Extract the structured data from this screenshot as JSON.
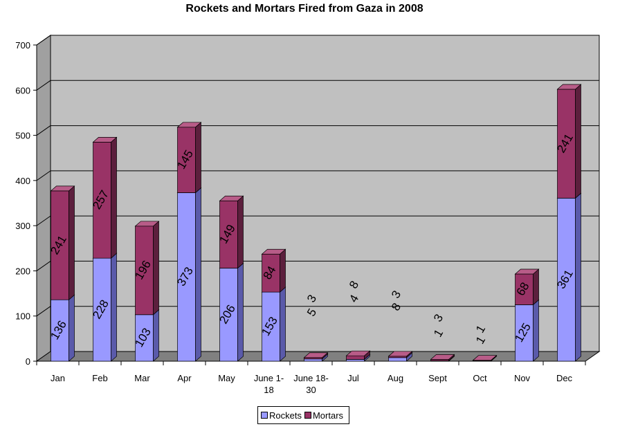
{
  "chart_data": {
    "type": "bar",
    "stacked": true,
    "three_d": true,
    "title": "Rockets and Mortars Fired from Gaza in 2008",
    "categories": [
      "Jan",
      "Feb",
      "Mar",
      "Apr",
      "May",
      "June 1-18",
      "June 18-30",
      "Jul",
      "Aug",
      "Sept",
      "Oct",
      "Nov",
      "Dec"
    ],
    "category_labels": [
      [
        "Jan"
      ],
      [
        "Feb"
      ],
      [
        "Mar"
      ],
      [
        "Apr"
      ],
      [
        "May"
      ],
      [
        "June 1-",
        "18"
      ],
      [
        "June 18-",
        "30"
      ],
      [
        "Jul"
      ],
      [
        "Aug"
      ],
      [
        "Sept"
      ],
      [
        "Oct"
      ],
      [
        "Nov"
      ],
      [
        "Dec"
      ]
    ],
    "series": [
      {
        "name": "Rockets",
        "values": [
          136,
          228,
          103,
          373,
          206,
          153,
          5,
          4,
          8,
          1,
          1,
          125,
          361
        ],
        "color": "#9999ff",
        "side_color": "#5a5aaa",
        "top_color": "#b8b8ff"
      },
      {
        "name": "Mortars",
        "values": [
          241,
          257,
          196,
          145,
          149,
          84,
          3,
          8,
          3,
          3,
          1,
          68,
          241
        ],
        "color": "#993366",
        "side_color": "#5c1f3d",
        "top_color": "#b85c88"
      }
    ],
    "ylim": [
      0,
      700
    ],
    "yticks": [
      0,
      100,
      200,
      300,
      400,
      500,
      600,
      700
    ],
    "grid": true,
    "legend_position": "bottom",
    "data_labels": true,
    "data_label_rotation": -60,
    "wall_color": "#c0c0c0",
    "floor_color": "#808080"
  },
  "legend": {
    "items": [
      {
        "label": "Rockets",
        "color": "#9999ff"
      },
      {
        "label": "Mortars",
        "color": "#993366"
      }
    ]
  }
}
